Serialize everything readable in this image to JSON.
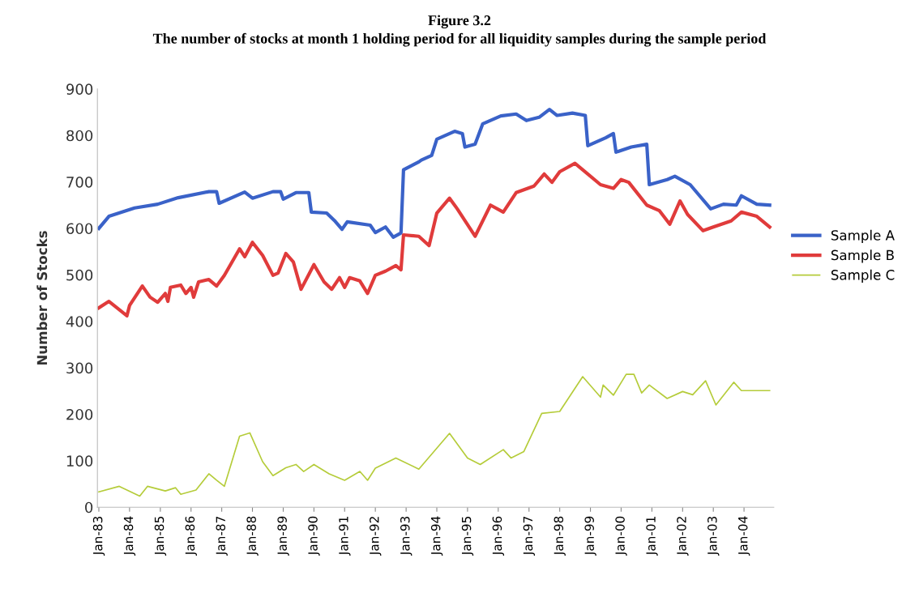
{
  "chart_data": {
    "type": "line",
    "title": "Figure 3.2",
    "subtitle": "The number of stocks at month 1 holding period for all liquidity samples during the sample period",
    "ylabel": "Number of Stocks",
    "xlim": [
      "1982-12-15",
      "2004-12-20"
    ],
    "ylim": [
      0,
      900
    ],
    "yticks": [
      0,
      100,
      200,
      300,
      400,
      500,
      600,
      700,
      800,
      900
    ],
    "xticks": [
      {
        "value": "1983-01",
        "label": "Jan-83"
      },
      {
        "value": "1984-01",
        "label": "Jan-84"
      },
      {
        "value": "1985-01",
        "label": "Jan-85"
      },
      {
        "value": "1986-01",
        "label": "Jan-86"
      },
      {
        "value": "1987-01",
        "label": "Jan-87"
      },
      {
        "value": "1988-01",
        "label": "Jan-88"
      },
      {
        "value": "1989-01",
        "label": "Jan-89"
      },
      {
        "value": "1990-01",
        "label": "Jan-90"
      },
      {
        "value": "1991-01",
        "label": "Jan-91"
      },
      {
        "value": "1992-01",
        "label": "Jan-92"
      },
      {
        "value": "1993-01",
        "label": "Jan-93"
      },
      {
        "value": "1994-01",
        "label": "Jan-94"
      },
      {
        "value": "1995-01",
        "label": "Jan-95"
      },
      {
        "value": "1996-01",
        "label": "Jan-96"
      },
      {
        "value": "1997-01",
        "label": "Jan-97"
      },
      {
        "value": "1998-01",
        "label": "Jan-98"
      },
      {
        "value": "1999-01",
        "label": "Jan-99"
      },
      {
        "value": "2000-01",
        "label": "Jan-00"
      },
      {
        "value": "2001-01",
        "label": "Jan-01"
      },
      {
        "value": "2002-01",
        "label": "Jan-02"
      },
      {
        "value": "2003-01",
        "label": "Jan-03"
      },
      {
        "value": "2004-01",
        "label": "Jan-04"
      }
    ],
    "grid": false,
    "legend": "right",
    "marker": "none",
    "line_style": "solid",
    "series": [
      {
        "name": "Sample A",
        "color": "#3a62c8",
        "x": [
          "1983-01",
          "1983-05",
          "1984-03",
          "1984-12",
          "1985-08",
          "1986-08",
          "1986-11",
          "1986-12",
          "1987-10",
          "1988-01",
          "1988-09",
          "1988-12",
          "1989-01",
          "1989-06",
          "1989-11",
          "1989-12",
          "1990-06",
          "1990-09",
          "1990-12",
          "1991-02",
          "1991-11",
          "1992-01",
          "1992-05",
          "1992-08",
          "1992-11",
          "1992-12",
          "1993-06",
          "1993-07",
          "1993-11",
          "1994-01",
          "1994-08",
          "1994-11",
          "1994-12",
          "1995-04",
          "1995-07",
          "1996-02",
          "1996-08",
          "1996-12",
          "1997-05",
          "1997-09",
          "1997-12",
          "1998-06",
          "1998-11",
          "1998-12",
          "1999-07",
          "1999-10",
          "1999-11",
          "2000-05",
          "2000-11",
          "2000-12",
          "2001-07",
          "2001-10",
          "2002-04",
          "2002-12",
          "2003-05",
          "2003-10",
          "2003-12",
          "2004-06",
          "2004-11"
        ],
        "values": [
          600,
          626,
          644,
          652,
          666,
          679,
          679,
          654,
          678,
          665,
          679,
          679,
          663,
          677,
          677,
          635,
          633,
          617,
          598,
          614,
          607,
          591,
          603,
          581,
          590,
          726,
          743,
          747,
          757,
          792,
          809,
          804,
          775,
          781,
          825,
          842,
          846,
          832,
          839,
          856,
          843,
          848,
          843,
          778,
          795,
          804,
          764,
          775,
          781,
          694,
          705,
          712,
          694,
          642,
          652,
          650,
          670,
          652,
          650
        ]
      },
      {
        "name": "Sample B",
        "color": "#e03b3b",
        "x": [
          "1983-01",
          "1983-05",
          "1983-12",
          "1984-01",
          "1984-06",
          "1984-09",
          "1984-12",
          "1985-03",
          "1985-04",
          "1985-05",
          "1985-09",
          "1985-11",
          "1986-01",
          "1986-02",
          "1986-04",
          "1986-08",
          "1986-11",
          "1987-02",
          "1987-08",
          "1987-10",
          "1988-01",
          "1988-05",
          "1988-09",
          "1988-11",
          "1989-02",
          "1989-05",
          "1989-08",
          "1990-01",
          "1990-05",
          "1990-08",
          "1990-11",
          "1991-01",
          "1991-03",
          "1991-07",
          "1991-10",
          "1992-01",
          "1992-05",
          "1992-09",
          "1992-11",
          "1992-12",
          "1993-06",
          "1993-10",
          "1994-01",
          "1994-06",
          "1994-09",
          "1995-04",
          "1995-10",
          "1996-03",
          "1996-08",
          "1997-03",
          "1997-07",
          "1997-10",
          "1998-01",
          "1998-07",
          "1998-12",
          "1999-05",
          "1999-10",
          "2000-01",
          "2000-04",
          "2000-11",
          "2001-04",
          "2001-08",
          "2001-12",
          "2002-03",
          "2002-09",
          "2003-01",
          "2003-08",
          "2003-12",
          "2004-06",
          "2004-11"
        ],
        "values": [
          429,
          443,
          412,
          434,
          476,
          452,
          441,
          460,
          443,
          473,
          478,
          460,
          473,
          452,
          485,
          490,
          476,
          499,
          556,
          539,
          570,
          542,
          499,
          504,
          546,
          528,
          469,
          522,
          485,
          469,
          494,
          473,
          494,
          487,
          460,
          499,
          508,
          520,
          511,
          586,
          583,
          563,
          633,
          665,
          642,
          583,
          650,
          635,
          677,
          691,
          717,
          699,
          722,
          740,
          717,
          694,
          686,
          705,
          699,
          650,
          638,
          609,
          659,
          630,
          595,
          603,
          616,
          635,
          626,
          603
        ]
      },
      {
        "name": "Sample C",
        "color": "#b5cc3a",
        "x": [
          "1983-01",
          "1983-09",
          "1984-05",
          "1984-08",
          "1985-03",
          "1985-07",
          "1985-09",
          "1986-03",
          "1986-08",
          "1986-11",
          "1987-02",
          "1987-08",
          "1987-12",
          "1988-05",
          "1988-09",
          "1989-02",
          "1989-06",
          "1989-09",
          "1990-01",
          "1990-07",
          "1991-01",
          "1991-07",
          "1991-10",
          "1992-01",
          "1992-09",
          "1993-06",
          "1994-06",
          "1995-01",
          "1995-06",
          "1996-03",
          "1996-06",
          "1996-11",
          "1997-06",
          "1998-01",
          "1998-10",
          "1999-05",
          "1999-06",
          "1999-10",
          "2000-03",
          "2000-06",
          "2000-09",
          "2000-12",
          "2001-07",
          "2002-01",
          "2002-05",
          "2002-10",
          "2003-02",
          "2003-09",
          "2003-12",
          "2004-11"
        ],
        "values": [
          33,
          45,
          24,
          45,
          35,
          42,
          28,
          37,
          72,
          58,
          45,
          153,
          160,
          98,
          68,
          85,
          92,
          77,
          92,
          72,
          58,
          77,
          58,
          84,
          106,
          82,
          159,
          106,
          92,
          124,
          106,
          120,
          202,
          206,
          281,
          237,
          263,
          241,
          286,
          286,
          246,
          263,
          234,
          249,
          242,
          272,
          220,
          269,
          251,
          251
        ]
      }
    ]
  }
}
